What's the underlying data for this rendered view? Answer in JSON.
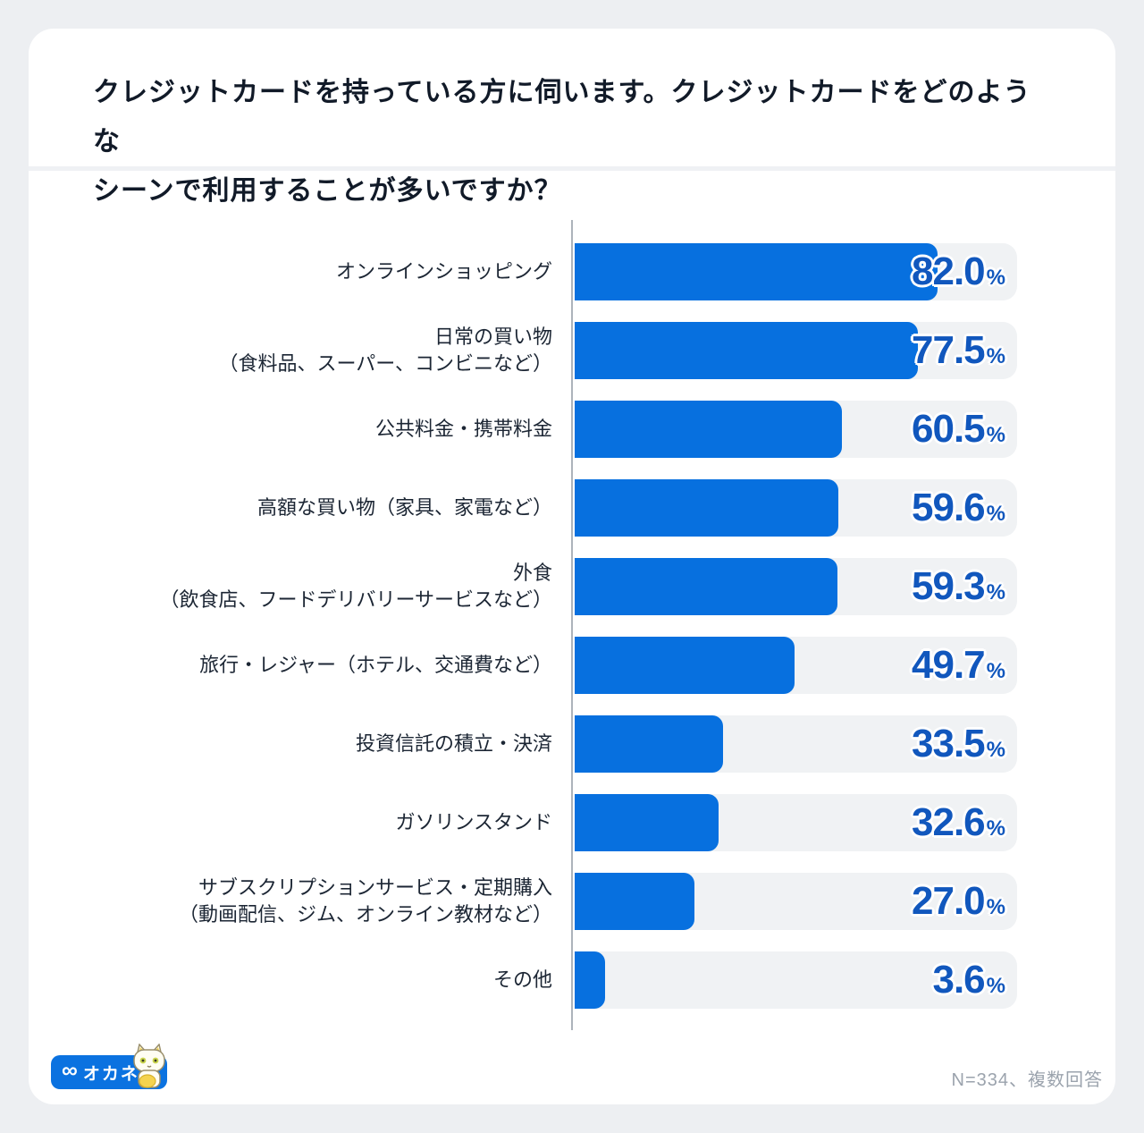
{
  "page": {
    "title": "クレジットカードを持っている方に伺います。クレジットカードをどのような\nシーンで利用することが多いですか？",
    "footnote": "N=334、複数回答",
    "logo": {
      "brand": "オカネコ",
      "icon": "infinity-goggles-icon",
      "mascot": "cat-mascot",
      "pill_color": "#0B72E0"
    }
  },
  "chart_data": {
    "type": "bar",
    "orientation": "horizontal",
    "unit": "%",
    "xlim": [
      0,
      100
    ],
    "grid": false,
    "legend": false,
    "bar_color": "#0770DF",
    "track_color": "#F0F2F4",
    "value_color": "#1157BD",
    "categories": [
      "オンラインショッピング",
      "日常の買い物（食料品、スーパー、コンビニなど）",
      "公共料金・携帯料金",
      "高額な買い物（家具、家電など）",
      "外食（飲食店、フードデリバリーサービスなど）",
      "旅行・レジャー（ホテル、交通費など）",
      "投資信託の積立・決済",
      "ガソリンスタンド",
      "サブスクリプションサービス・定期購入（動画配信、ジム、オンライン教材など）",
      "その他"
    ],
    "values": [
      82.0,
      77.5,
      60.5,
      59.6,
      59.3,
      49.7,
      33.5,
      32.6,
      27.0,
      3.6
    ],
    "rows": [
      {
        "label": "オンラインショッピング",
        "sub": "",
        "value": 82.0
      },
      {
        "label": "日常の買い物",
        "sub": "（食料品、スーパー、コンビニなど）",
        "value": 77.5
      },
      {
        "label": "公共料金・携帯料金",
        "sub": "",
        "value": 60.5
      },
      {
        "label": "高額な買い物（家具、家電など）",
        "sub": "",
        "value": 59.6
      },
      {
        "label": "外食",
        "sub": "（飲食店、フードデリバリーサービスなど）",
        "value": 59.3
      },
      {
        "label": "旅行・レジャー（ホテル、交通費など）",
        "sub": "",
        "value": 49.7
      },
      {
        "label": "投資信託の積立・決済",
        "sub": "",
        "value": 33.5
      },
      {
        "label": "ガソリンスタンド",
        "sub": "",
        "value": 32.6
      },
      {
        "label": "サブスクリプションサービス・定期購入",
        "sub": "（動画配信、ジム、オンライン教材など）",
        "value": 27.0
      },
      {
        "label": "その他",
        "sub": "",
        "value": 3.6
      }
    ]
  }
}
